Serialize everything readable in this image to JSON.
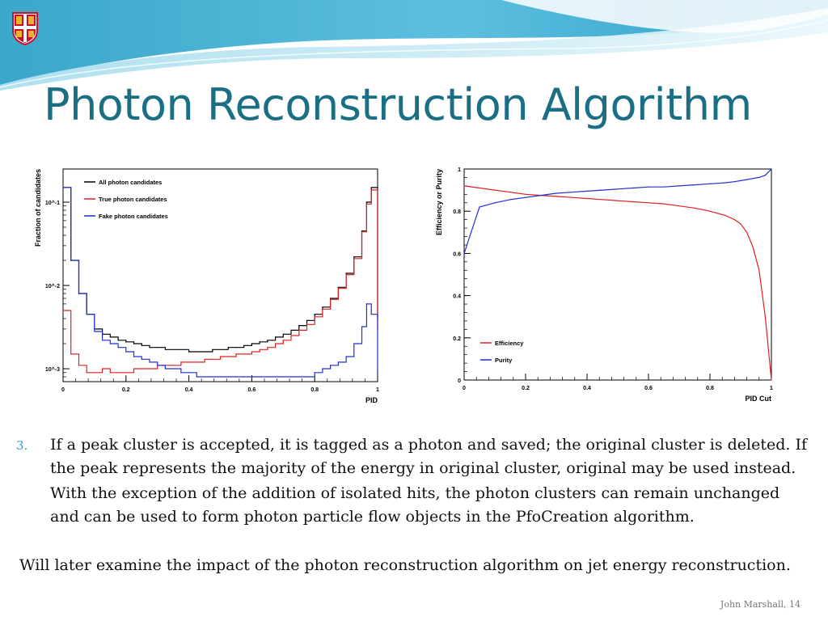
{
  "slide": {
    "title": "Photon Reconstruction Algorithm",
    "bullet_number": "3.",
    "bullet_text": "If a peak cluster is accepted, it is tagged as a photon and saved; the original cluster is deleted. If the peak represents the majority of the energy in original cluster, original may be used instead.",
    "bullet_continuation": "With the exception of the addition of isolated hits, the photon clusters can remain unchanged and can be used to form photon particle flow objects in the PfoCreation algorithm.",
    "note": "Will later examine the impact of the photon reconstruction algorithm on jet energy reconstruction.",
    "footer": "John Marshall, 14",
    "colors": {
      "title": "#1b6f84",
      "bullet": "#2ea3bf",
      "banner_dark": "#2c9ec3",
      "banner_light": "#cfeef7"
    },
    "icons": {
      "crest": "university-crest-icon"
    }
  },
  "chart_data": [
    {
      "type": "line",
      "xlabel": "PID",
      "ylabel": "Fraction of candidates",
      "xlim": [
        0,
        1
      ],
      "ylim": [
        0.0007,
        0.25
      ],
      "log_y": true,
      "x_ticks": [
        "0",
        "0.2",
        "0.4",
        "0.6",
        "0.8",
        "1"
      ],
      "y_ticks": [
        "10^-1",
        "10^-2",
        "10^-3"
      ],
      "legend_position": "top-left",
      "x": [
        0.0,
        0.025,
        0.05,
        0.075,
        0.1,
        0.125,
        0.15,
        0.175,
        0.2,
        0.225,
        0.25,
        0.275,
        0.3,
        0.325,
        0.35,
        0.375,
        0.4,
        0.425,
        0.45,
        0.475,
        0.5,
        0.525,
        0.55,
        0.575,
        0.6,
        0.625,
        0.65,
        0.675,
        0.7,
        0.725,
        0.75,
        0.775,
        0.8,
        0.825,
        0.85,
        0.875,
        0.9,
        0.925,
        0.95,
        0.965,
        0.98,
        1.0
      ],
      "series": [
        {
          "name": "All photon candidates",
          "color": "#000000",
          "values": [
            0.15,
            0.02,
            0.008,
            0.0045,
            0.003,
            0.0026,
            0.0024,
            0.0022,
            0.0021,
            0.002,
            0.0019,
            0.0018,
            0.0018,
            0.0017,
            0.0017,
            0.0017,
            0.0016,
            0.0016,
            0.0016,
            0.0017,
            0.0017,
            0.0018,
            0.0018,
            0.0019,
            0.002,
            0.0021,
            0.0022,
            0.0024,
            0.0026,
            0.0029,
            0.0033,
            0.0038,
            0.0045,
            0.0055,
            0.007,
            0.0095,
            0.014,
            0.022,
            0.045,
            0.1,
            0.15,
            0.004
          ]
        },
        {
          "name": "True photon candidates",
          "color": "#e02020",
          "values": [
            0.005,
            0.0015,
            0.0011,
            0.0009,
            0.0009,
            0.001,
            0.0009,
            0.0009,
            0.0009,
            0.001,
            0.001,
            0.001,
            0.0011,
            0.0011,
            0.0011,
            0.0012,
            0.0012,
            0.0012,
            0.0013,
            0.0013,
            0.0014,
            0.0014,
            0.0015,
            0.0015,
            0.0016,
            0.0017,
            0.0018,
            0.002,
            0.0022,
            0.0025,
            0.0029,
            0.0034,
            0.0042,
            0.0052,
            0.0068,
            0.0092,
            0.0135,
            0.021,
            0.044,
            0.095,
            0.14,
            0.003
          ]
        },
        {
          "name": "Fake photon candidates",
          "color": "#2030d0",
          "values": [
            0.15,
            0.02,
            0.008,
            0.0045,
            0.0028,
            0.0022,
            0.002,
            0.0018,
            0.0016,
            0.0014,
            0.0013,
            0.0012,
            0.0011,
            0.001,
            0.001,
            0.0009,
            0.0009,
            0.0008,
            0.0008,
            0.0008,
            0.0008,
            0.0008,
            0.0008,
            0.0008,
            0.0008,
            0.0008,
            0.0008,
            0.0008,
            0.0008,
            0.0008,
            0.0008,
            0.0008,
            0.0009,
            0.001,
            0.0011,
            0.0012,
            0.0014,
            0.002,
            0.0032,
            0.006,
            0.0045,
            0.0009
          ]
        }
      ]
    },
    {
      "type": "line",
      "xlabel": "PID Cut",
      "ylabel": "Efficiency or Purity",
      "xlim": [
        0,
        1
      ],
      "ylim": [
        0,
        1
      ],
      "log_y": false,
      "x_ticks": [
        "0",
        "0.2",
        "0.4",
        "0.6",
        "0.8",
        "1"
      ],
      "y_ticks": [
        "0",
        "0.2",
        "0.4",
        "0.6",
        "0.8",
        "1"
      ],
      "legend_position": "bottom-left",
      "x": [
        0.0,
        0.05,
        0.1,
        0.15,
        0.2,
        0.25,
        0.3,
        0.35,
        0.4,
        0.45,
        0.5,
        0.55,
        0.6,
        0.65,
        0.7,
        0.75,
        0.8,
        0.85,
        0.88,
        0.9,
        0.92,
        0.94,
        0.96,
        0.98,
        1.0
      ],
      "series": [
        {
          "name": "Efficiency",
          "color": "#e02020",
          "values": [
            0.92,
            0.91,
            0.9,
            0.89,
            0.88,
            0.875,
            0.87,
            0.865,
            0.86,
            0.855,
            0.85,
            0.845,
            0.84,
            0.835,
            0.825,
            0.815,
            0.8,
            0.78,
            0.76,
            0.74,
            0.7,
            0.63,
            0.52,
            0.3,
            0.0
          ]
        },
        {
          "name": "Purity",
          "color": "#2030d0",
          "values": [
            0.6,
            0.82,
            0.84,
            0.855,
            0.865,
            0.875,
            0.885,
            0.89,
            0.895,
            0.9,
            0.905,
            0.91,
            0.915,
            0.915,
            0.92,
            0.925,
            0.93,
            0.935,
            0.94,
            0.945,
            0.95,
            0.955,
            0.96,
            0.97,
            1.0
          ]
        }
      ]
    }
  ]
}
